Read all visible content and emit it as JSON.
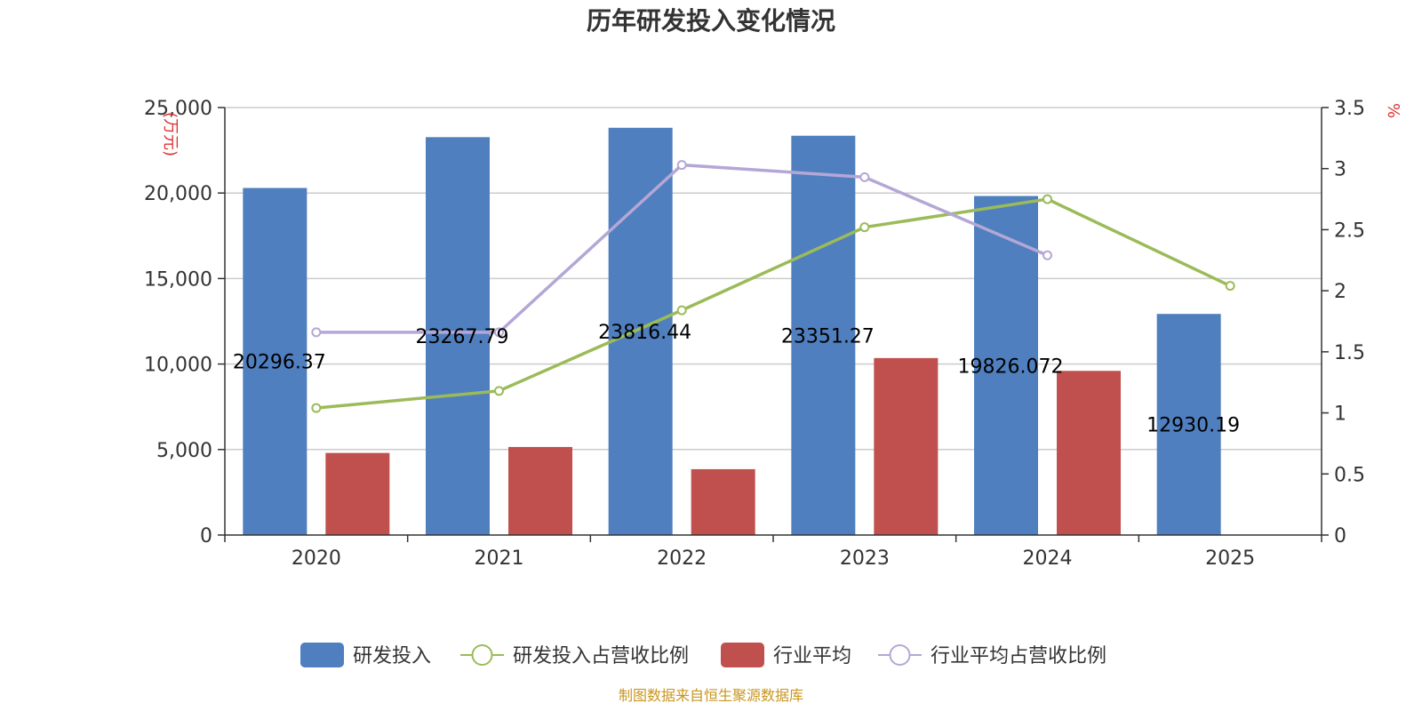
{
  "chart_data": {
    "type": "bar",
    "title": "历年研发投入变化情况",
    "categories": [
      "2020",
      "2021",
      "2022",
      "2023",
      "2024",
      "2025"
    ],
    "series": [
      {
        "name": "研发投入",
        "kind": "bar",
        "axis": "left",
        "color": "#4f7fbf",
        "values": [
          20296.37,
          23267.79,
          23816.44,
          23351.27,
          19826.072,
          12930.19
        ]
      },
      {
        "name": "研发投入占营收比例",
        "kind": "line",
        "axis": "right",
        "color": "#9bbb59",
        "values": [
          1.04,
          1.18,
          1.84,
          2.52,
          2.75,
          2.04
        ]
      },
      {
        "name": "行业平均",
        "kind": "bar",
        "axis": "left",
        "color": "#c0504d",
        "values": [
          4800,
          5150,
          3850,
          10350,
          9600,
          null
        ]
      },
      {
        "name": "行业平均占营收比例",
        "kind": "line",
        "axis": "right",
        "color": "#b4a7d6",
        "values": [
          1.66,
          1.66,
          3.03,
          2.93,
          2.29,
          null
        ]
      }
    ],
    "data_labels": [
      "20296.37",
      "23267.79",
      "23816.44",
      "23351.27",
      "19826.072",
      "12930.19"
    ],
    "ylabel_left": "万元",
    "ylabel_right": "%",
    "ylim_left": [
      0,
      25000
    ],
    "ylim_right": [
      0,
      3.5
    ],
    "yticks_left": [
      "0",
      "5,000",
      "10,000",
      "15,000",
      "20,000",
      "25,000"
    ],
    "yticks_right": [
      "0",
      "0.5",
      "1",
      "1.5",
      "2",
      "2.5",
      "3",
      "3.5"
    ],
    "grid": true,
    "legend_position": "bottom"
  },
  "source": "制图数据来自恒生聚源数据库"
}
